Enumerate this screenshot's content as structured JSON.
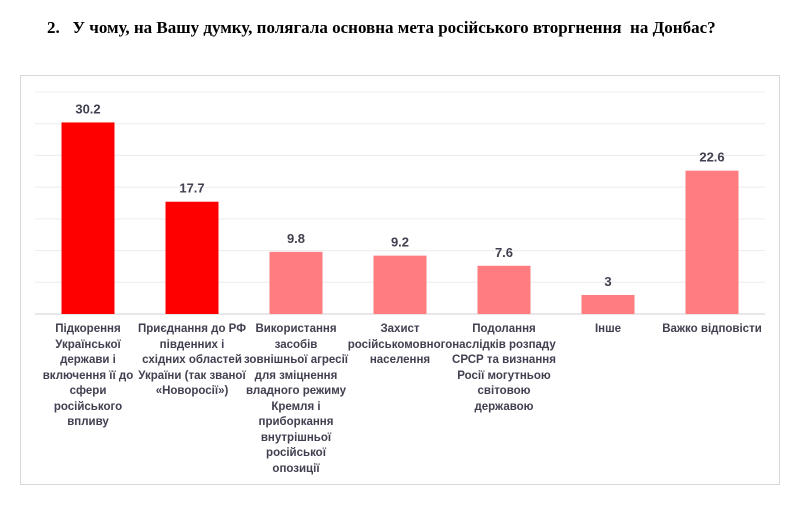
{
  "title": "2.   У чому, на Вашу думку, полягала основна мета російського вторгнення  на Донбас?",
  "chart_data": {
    "type": "bar",
    "title": "",
    "xlabel": "",
    "ylabel": "",
    "ylim": [
      0,
      35
    ],
    "grid": true,
    "categories": [
      "Підкорення Української держави і включення її до сфери російського впливу",
      "Приєднання до РФ південних і східних областей України (так званої «Новоросії»)",
      "Використання засобів зовнішньої агресії для зміцнення владного режиму Кремля і приборкання внутрішньої російської опозиції",
      "Захист російськомовного населення",
      "Подолання наслідків розпаду СРСР та визнання Росії могутньою світовою державою",
      "Інше",
      "Важко відповісти"
    ],
    "values": [
      30.2,
      17.7,
      9.8,
      9.2,
      7.6,
      3,
      22.6
    ],
    "value_labels": [
      "30.2",
      "17.7",
      "9.8",
      "9.2",
      "7.6",
      "3",
      "22.6"
    ],
    "colors": [
      "#ff0000",
      "#ff0000",
      "#ff7c80",
      "#ff7c80",
      "#ff7c80",
      "#ff7c80",
      "#ff7c80"
    ]
  }
}
